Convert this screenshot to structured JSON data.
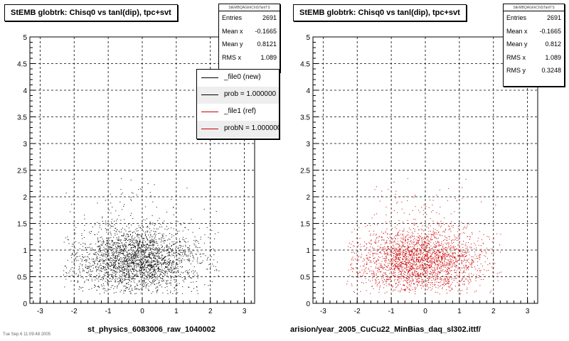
{
  "footer_text": "Tue Sep 6 11:09:48 2005",
  "chart_data": [
    {
      "type": "scatter",
      "title": "StEMB globtrk: Chisq0 vs tanl(dip), tpc+svt",
      "xlabel": "st_physics_6083006_raw_1040002",
      "ylabel": "",
      "xlim": [
        -3.3,
        3.3
      ],
      "ylim": [
        0,
        5
      ],
      "xticks": [
        "-3",
        "-2",
        "-1",
        "0",
        "1",
        "2",
        "3"
      ],
      "yticks": [
        "0",
        "0.5",
        "1",
        "1.5",
        "2",
        "2.5",
        "3",
        "3.5",
        "4",
        "4.5",
        "5"
      ],
      "grid": true,
      "marker_color": "#000000",
      "series": [
        {
          "distribution": "2D density: x centered near -0.17 (spread ~1.09, range -2.3 to 2.2), y centered near 0.81 (spread ~0.32, range 0.2 to 2.3)",
          "x_mean": -0.1665,
          "y_mean": 0.8121,
          "x_rms": 1.089,
          "y_rms": 0.3248,
          "count": 2691
        }
      ],
      "stats": {
        "header": "StEMBQAGlrkChiSTanlTS",
        "rows": [
          {
            "label": "Entries",
            "value": "2691"
          },
          {
            "label": "Mean x",
            "value": "-0.1665"
          },
          {
            "label": "Mean y",
            "value": "0.8121"
          },
          {
            "label": "RMS x",
            "value": "1.089"
          }
        ]
      },
      "legend": {
        "placement": "top-right",
        "entries": [
          {
            "label": "_file0 (new)",
            "color": "#000000"
          },
          {
            "label": "prob = 1.000000",
            "color": "#000000"
          },
          {
            "label": "_file1 (ref)",
            "color": "#cc0000"
          },
          {
            "label": "probN = 1.000000",
            "color": "#cc0000"
          }
        ]
      }
    },
    {
      "type": "scatter",
      "title": "StEMB globtrk: Chisq0 vs tanl(dip), tpc+svt",
      "xlabel": "arision/year_2005_CuCu22_MinBias_daq_sl302.ittf/",
      "ylabel": "",
      "xlim": [
        -3.3,
        3.3
      ],
      "ylim": [
        0,
        5
      ],
      "xticks": [
        "-3",
        "-2",
        "-1",
        "0",
        "1",
        "2",
        "3"
      ],
      "yticks": [
        "0",
        "0.5",
        "1",
        "1.5",
        "2",
        "2.5",
        "3",
        "3.5",
        "4",
        "4.5",
        "5"
      ],
      "grid": true,
      "marker_color": "#cc0000",
      "series": [
        {
          "distribution": "2D density: x centered near -0.17 (spread ~1.09, range -2.3 to 2.2), y centered near 0.81 (spread ~0.32, range 0.2 to 2.3)",
          "x_mean": -0.1665,
          "y_mean": 0.812,
          "x_rms": 1.089,
          "y_rms": 0.3248,
          "count": 2691
        }
      ],
      "stats": {
        "header": "StEMBQAGlrkChiSTanlTS",
        "rows": [
          {
            "label": "Entries",
            "value": "2691"
          },
          {
            "label": "Mean x",
            "value": "-0.1665"
          },
          {
            "label": "Mean y",
            "value": "0.812"
          },
          {
            "label": "RMS x",
            "value": "1.089"
          },
          {
            "label": "RMS y",
            "value": "0.3248"
          }
        ]
      }
    }
  ]
}
